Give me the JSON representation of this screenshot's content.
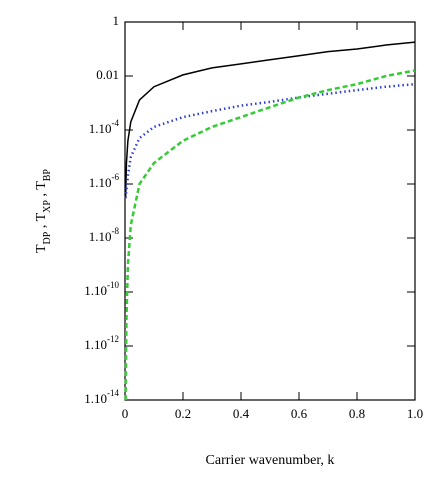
{
  "chart_data": {
    "type": "line",
    "xlabel": "Carrier wavenumber,  k",
    "ylabel": [
      "T",
      "DP",
      " , T",
      "XP",
      " , T",
      "BP"
    ],
    "x": [
      0.002,
      0.005,
      0.01,
      0.02,
      0.05,
      0.1,
      0.2,
      0.3,
      0.4,
      0.5,
      0.6,
      0.7,
      0.8,
      0.9,
      1.0
    ],
    "series": [
      {
        "color": "#000000",
        "dash": "solid",
        "values": [
          3e-07,
          6e-06,
          4e-05,
          0.0002,
          0.0013,
          0.004,
          0.011,
          0.02,
          0.028,
          0.04,
          0.056,
          0.08,
          0.1,
          0.14,
          0.18
        ]
      },
      {
        "color": "#2b3fd6",
        "dash": "dotted",
        "values": [
          3e-07,
          6e-07,
          2e-06,
          1e-05,
          5e-05,
          0.00013,
          0.0003,
          0.0005,
          0.0008,
          0.0011,
          0.0016,
          0.0022,
          0.003,
          0.004,
          0.005
        ]
      },
      {
        "color": "#33cc33",
        "dash": "dashed",
        "values": [
          1e-14,
          1e-11,
          1e-09,
          3e-08,
          1e-06,
          6e-06,
          4e-05,
          0.00013,
          0.0003,
          0.0007,
          0.0016,
          0.003,
          0.005,
          0.01,
          0.016
        ]
      }
    ],
    "xlim": [
      0,
      1
    ],
    "xticks": [
      0,
      0.2,
      0.4,
      0.6,
      0.8,
      {
        "value": 1,
        "label": "1.0"
      }
    ],
    "ylog": true,
    "ylim": [
      1e-14,
      1
    ],
    "yticks": [
      1,
      0.01,
      {
        "value": 0.0001,
        "label": "1.10",
        "exp": "-4"
      },
      {
        "value": 1e-06,
        "label": "1.10",
        "exp": "-6"
      },
      {
        "value": 1e-08,
        "label": "1.10",
        "exp": "-8"
      },
      {
        "value": 1e-10,
        "label": "1.10",
        "exp": "-10"
      },
      {
        "value": 1e-12,
        "label": "1.10",
        "exp": "-12"
      },
      {
        "value": 1e-14,
        "label": "1.10",
        "exp": "-14"
      }
    ]
  }
}
